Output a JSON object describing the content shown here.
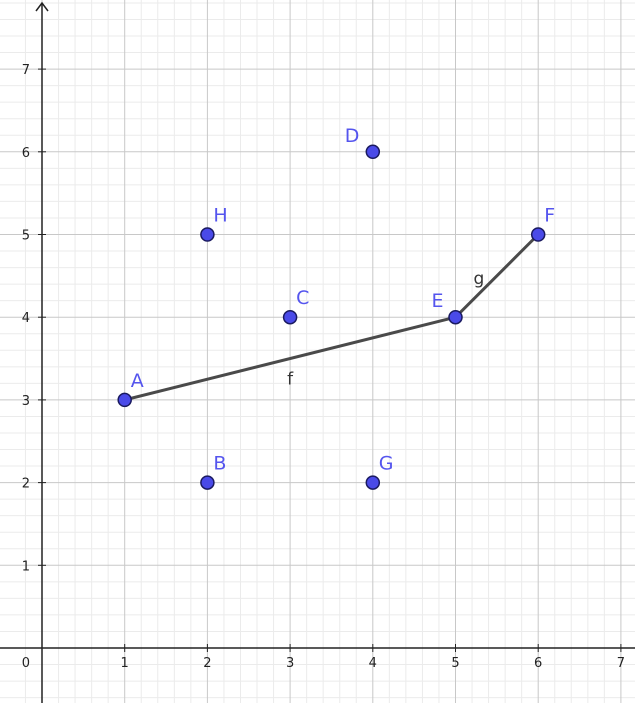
{
  "chart_data": {
    "type": "scatter",
    "title": "",
    "xlabel": "",
    "ylabel": "",
    "xlim": [
      -0.2,
      7.2
    ],
    "ylim": [
      -0.65,
      7.8
    ],
    "minor_grid_step": 0.2,
    "major_grid_step": 1,
    "grid": true,
    "x_ticks": [
      "0",
      "1",
      "2",
      "3",
      "4",
      "5",
      "6",
      "7"
    ],
    "y_ticks": [
      "1",
      "2",
      "3",
      "4",
      "5",
      "6",
      "7"
    ],
    "points": [
      {
        "name": "A",
        "x": 1,
        "y": 3
      },
      {
        "name": "B",
        "x": 2,
        "y": 2
      },
      {
        "name": "C",
        "x": 3,
        "y": 4
      },
      {
        "name": "D",
        "x": 4,
        "y": 6
      },
      {
        "name": "E",
        "x": 5,
        "y": 4
      },
      {
        "name": "F",
        "x": 6,
        "y": 5
      },
      {
        "name": "G",
        "x": 4,
        "y": 2
      },
      {
        "name": "H",
        "x": 2,
        "y": 5
      }
    ],
    "segments": [
      {
        "name": "f",
        "from": "A",
        "to": "E"
      },
      {
        "name": "g",
        "from": "E",
        "to": "F"
      }
    ],
    "colors": {
      "point_fill": "#4a4ae8",
      "point_stroke": "#1a1a60",
      "point_label": "#5555ee",
      "segment": "#4a4a4a",
      "axis": "#222222",
      "major_grid": "#c8c8c8",
      "minor_grid": "#ebebeb"
    }
  }
}
